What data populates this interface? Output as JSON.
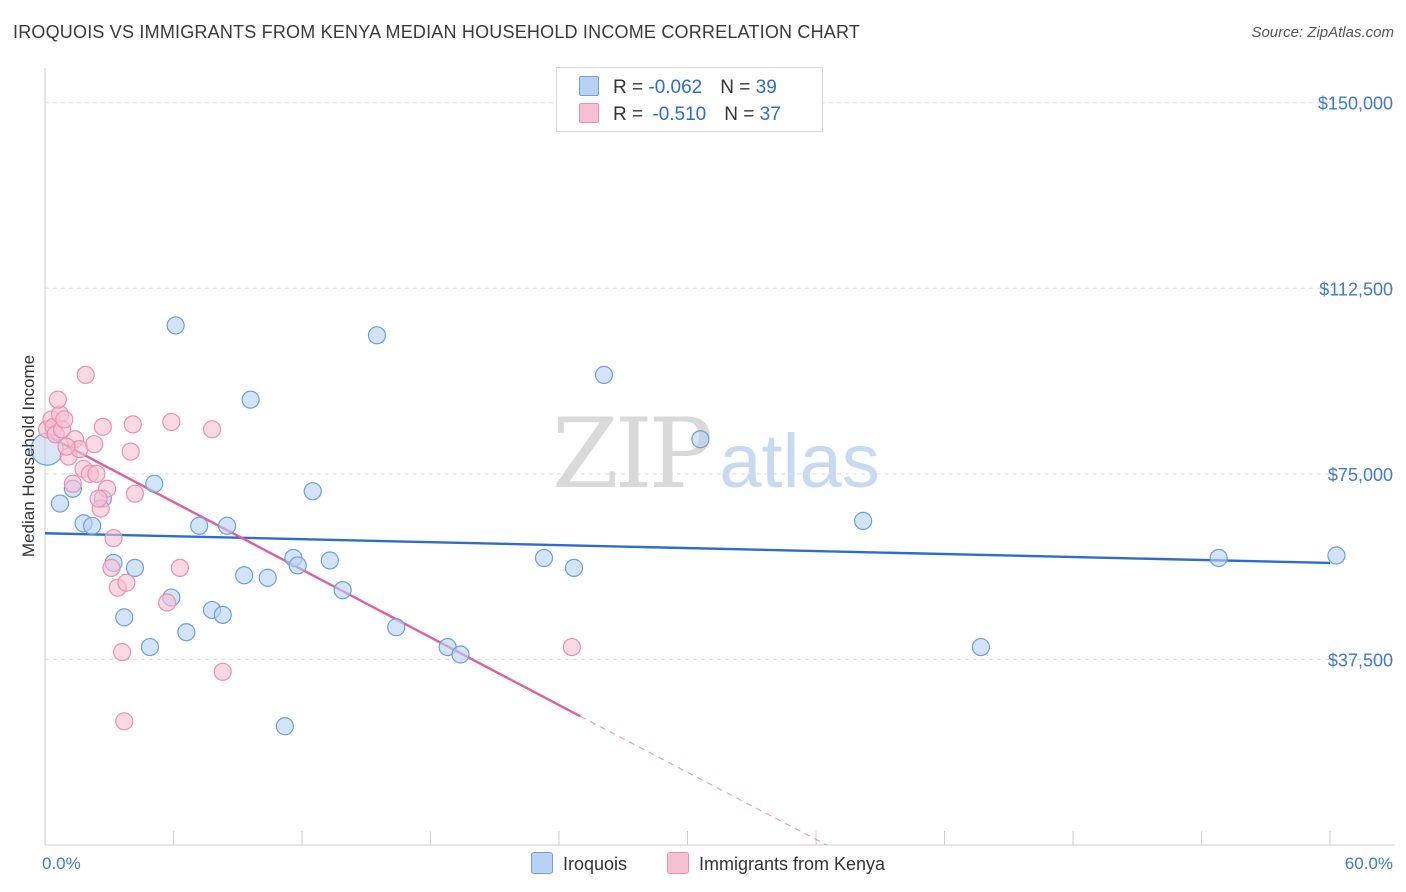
{
  "title": "IROQUOIS VS IMMIGRANTS FROM KENYA MEDIAN HOUSEHOLD INCOME CORRELATION CHART",
  "source": "Source: ZipAtlas.com",
  "watermark": {
    "zip": "ZIP",
    "atlas": "atlas"
  },
  "legend": {
    "rows": [
      {
        "r_label": "R = ",
        "r_value": "-0.062",
        "n_label": "N = ",
        "n_value": "39"
      },
      {
        "r_label": "R = ",
        "r_value": "-0.510",
        "n_label": "N = ",
        "n_value": "37"
      }
    ]
  },
  "colors": {
    "iroquois_fill": "#b8d2f3",
    "iroquois_stroke": "#6f9fdc",
    "iroquois_line": "#2e6ccf",
    "kenya_fill": "#f7c0d2",
    "kenya_stroke": "#ec8fb0",
    "kenya_line": "#e0609a",
    "grid": "#dddddd",
    "axis_text": "#3f7ad0"
  },
  "chart_data": {
    "type": "scatter",
    "ylabel": "Median Household Income",
    "x_tick_labels": {
      "min": "0.0%",
      "max": "60.0%"
    },
    "xlim": [
      0,
      60
    ],
    "ylim": [
      0,
      155000
    ],
    "y_ticks": [
      {
        "value": 37500,
        "label": "$37,500"
      },
      {
        "value": 75000,
        "label": "$75,000"
      },
      {
        "value": 112500,
        "label": "$112,500"
      },
      {
        "value": 150000,
        "label": "$150,000"
      }
    ],
    "series": [
      {
        "name": "Iroquois",
        "r": -0.062,
        "n": 39,
        "trend": {
          "x0": 0,
          "y0": 63000,
          "x1": 60,
          "y1": 57000
        },
        "points": [
          [
            0.1,
            80000
          ],
          [
            0.7,
            69000
          ],
          [
            1.3,
            72000
          ],
          [
            1.8,
            65000
          ],
          [
            2.2,
            64500
          ],
          [
            2.7,
            70000
          ],
          [
            3.2,
            57000
          ],
          [
            3.7,
            46000
          ],
          [
            4.2,
            56000
          ],
          [
            4.9,
            40000
          ],
          [
            5.1,
            73000
          ],
          [
            5.9,
            50000
          ],
          [
            6.1,
            105000
          ],
          [
            6.6,
            43000
          ],
          [
            7.2,
            64500
          ],
          [
            7.8,
            47500
          ],
          [
            8.3,
            46500
          ],
          [
            8.5,
            64500
          ],
          [
            9.3,
            54500
          ],
          [
            9.6,
            90000
          ],
          [
            10.4,
            54000
          ],
          [
            11.2,
            24000
          ],
          [
            11.6,
            58000
          ],
          [
            11.8,
            56500
          ],
          [
            12.5,
            71500
          ],
          [
            13.3,
            57500
          ],
          [
            13.9,
            51500
          ],
          [
            15.5,
            103000
          ],
          [
            16.4,
            44000
          ],
          [
            18.8,
            40000
          ],
          [
            19.4,
            38500
          ],
          [
            23.3,
            58000
          ],
          [
            24.7,
            56000
          ],
          [
            26.1,
            95000
          ],
          [
            30.6,
            82000
          ],
          [
            38.2,
            65500
          ],
          [
            43.7,
            40000
          ],
          [
            54.8,
            58000
          ],
          [
            60.3,
            58500
          ]
        ]
      },
      {
        "name": "Immigrants from Kenya",
        "r": -0.51,
        "n": 37,
        "trend": {
          "x0": 0,
          "y0": 83000,
          "x1": 25,
          "y1": 26000,
          "dash_x1": 36.5,
          "dash_y1": 0
        },
        "points": [
          [
            0.1,
            84000
          ],
          [
            0.3,
            86000
          ],
          [
            0.4,
            84500
          ],
          [
            0.5,
            83000
          ],
          [
            0.7,
            87000
          ],
          [
            0.8,
            84000
          ],
          [
            0.9,
            86000
          ],
          [
            1.1,
            78500
          ],
          [
            1.3,
            73000
          ],
          [
            1.4,
            82000
          ],
          [
            1.6,
            80000
          ],
          [
            1.8,
            76000
          ],
          [
            2.1,
            75000
          ],
          [
            2.3,
            81000
          ],
          [
            2.4,
            75000
          ],
          [
            2.6,
            68000
          ],
          [
            2.7,
            84500
          ],
          [
            2.9,
            72000
          ],
          [
            3.1,
            56000
          ],
          [
            3.2,
            62000
          ],
          [
            3.4,
            52000
          ],
          [
            3.6,
            39000
          ],
          [
            3.7,
            25000
          ],
          [
            3.8,
            53000
          ],
          [
            4.0,
            79500
          ],
          [
            4.1,
            85000
          ],
          [
            4.2,
            71000
          ],
          [
            5.7,
            49000
          ],
          [
            5.9,
            85500
          ],
          [
            6.3,
            56000
          ],
          [
            1.9,
            95000
          ],
          [
            2.5,
            70000
          ],
          [
            7.8,
            84000
          ],
          [
            8.3,
            35000
          ],
          [
            24.6,
            40000
          ],
          [
            0.6,
            90000
          ],
          [
            1.0,
            80500
          ]
        ]
      }
    ]
  },
  "bottom_legend": [
    "Iroquois",
    "Immigrants from Kenya"
  ]
}
